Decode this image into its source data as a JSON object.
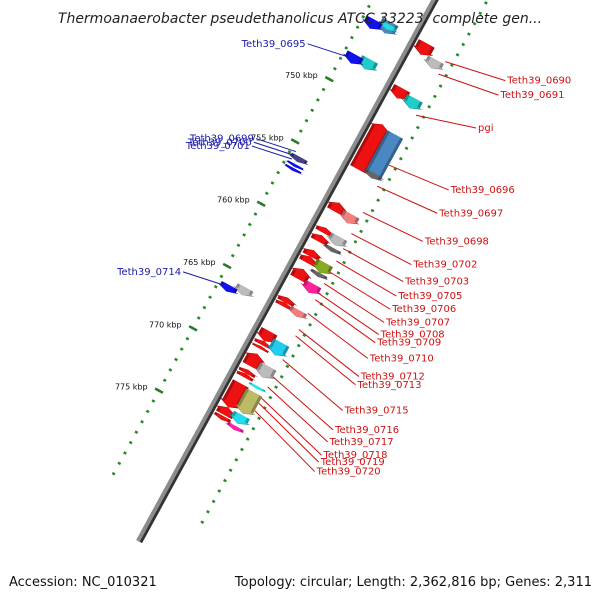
{
  "title": "Thermoanaerobacter pseudethanolicus ATCC 33223, complete gen...",
  "footer": {
    "accession": "Accession: NC_010321",
    "topology": "Topology: circular; Length: 2,362,816 bp; Genes: 2,311"
  },
  "colors": {
    "label_left": "#1a1aa8",
    "label_right": "#cc1111",
    "backbone": "#8c8c8c",
    "tick_major": "#2a7a2a",
    "tick_minor": "#2a8a2a"
  },
  "kbp_ticks": [
    {
      "label": "750 kbp",
      "pos": 750
    },
    {
      "label": "755 kbp",
      "pos": 755
    },
    {
      "label": "760 kbp",
      "pos": 760
    },
    {
      "label": "765 kbp",
      "pos": 765
    },
    {
      "label": "770 kbp",
      "pos": 770
    },
    {
      "label": "775 kbp",
      "pos": 775
    }
  ],
  "labels_left": [
    {
      "text": "Teth39_0695",
      "target": 748.0
    },
    {
      "text": "Teth39_0699",
      "target": 755.6
    },
    {
      "text": "Teth39_0700",
      "target": 755.9
    },
    {
      "text": "Teth39_0701",
      "target": 756.2
    },
    {
      "text": "Teth39_0714",
      "target": 766.3
    }
  ],
  "labels_right": [
    {
      "text": "Teth39_0690",
      "target": 745.0
    },
    {
      "text": "Teth39_0691",
      "target": 746.0
    },
    {
      "text": "pgi",
      "target": 749.3
    },
    {
      "text": "Teth39_0696",
      "target": 753.3
    },
    {
      "text": "Teth39_0697",
      "target": 755.0
    },
    {
      "text": "Teth39_0698",
      "target": 757.1
    },
    {
      "text": "Teth39_0702",
      "target": 758.8
    },
    {
      "text": "Teth39_0703",
      "target": 760.0
    },
    {
      "text": "Teth39_0705",
      "target": 761.0
    },
    {
      "text": "Teth39_0706",
      "target": 761.9
    },
    {
      "text": "Teth39_0707",
      "target": 762.8
    },
    {
      "text": "Teth39_0708",
      "target": 763.6
    },
    {
      "text": "Teth39_0709",
      "target": 764.1
    },
    {
      "text": "Teth39_0710",
      "target": 765.2
    },
    {
      "text": "Teth39_0712",
      "target": 766.5
    },
    {
      "text": "Teth39_0713",
      "target": 767.0
    },
    {
      "text": "Teth39_0715",
      "target": 768.9
    },
    {
      "text": "Teth39_0716",
      "target": 770.3
    },
    {
      "text": "Teth39_0717",
      "target": 771.1
    },
    {
      "text": "Teth39_0718",
      "target": 772.0
    },
    {
      "text": "Teth39_0719",
      "target": 772.4
    },
    {
      "text": "Teth39_0720",
      "target": 773.0
    }
  ],
  "genes": [
    {
      "ring": 1,
      "start": 744.4,
      "end": 745.3,
      "dir": 1,
      "color": "#4a88c2"
    },
    {
      "ring": 1,
      "start": 744.6,
      "end": 745.0,
      "dir": 1,
      "color": "#22dddd"
    },
    {
      "ring": 0,
      "start": 744.8,
      "end": 745.5,
      "dir": 1,
      "color": "#1111ee"
    },
    {
      "ring": 3,
      "start": 744.5,
      "end": 745.4,
      "dir": 1,
      "color": "#ee1111"
    },
    {
      "ring": 4,
      "start": 745.2,
      "end": 745.9,
      "dir": 1,
      "color": "#bbbbbb"
    },
    {
      "ring": 1,
      "start": 747.4,
      "end": 748.2,
      "dir": 1,
      "color": "#22cccc"
    },
    {
      "ring": 0,
      "start": 747.6,
      "end": 748.3,
      "dir": 1,
      "color": "#1111ee"
    },
    {
      "ring": 3,
      "start": 748.1,
      "end": 748.9,
      "dir": 1,
      "color": "#ee1111"
    },
    {
      "ring": 4,
      "start": 748.3,
      "end": 749.1,
      "dir": 1,
      "color": "#22cccc"
    },
    {
      "ring": 3,
      "start": 751.0,
      "end": 754.6,
      "dir": -1,
      "color": "#ee1111"
    },
    {
      "ring": 4,
      "start": 751.2,
      "end": 754.7,
      "dir": 1,
      "color": "#4a88c2"
    },
    {
      "ring": 4,
      "start": 754.3,
      "end": 754.7,
      "dir": 1,
      "color": "#666666"
    },
    {
      "ring": 0,
      "start": 755.8,
      "end": 756.2,
      "dir": 1,
      "color": "#444488"
    },
    {
      "ring": 0,
      "start": 756.4,
      "end": 756.6,
      "dir": 1,
      "color": "#1111ee"
    },
    {
      "ring": 0,
      "start": 756.7,
      "end": 756.9,
      "dir": 1,
      "color": "#1111ee"
    },
    {
      "ring": 3,
      "start": 757.3,
      "end": 758.0,
      "dir": -1,
      "color": "#ee1111"
    },
    {
      "ring": 4,
      "start": 757.6,
      "end": 758.3,
      "dir": 1,
      "color": "#f08080"
    },
    {
      "ring": 3,
      "start": 759.3,
      "end": 759.7,
      "dir": -1,
      "color": "#ee1111"
    },
    {
      "ring": 4,
      "start": 759.4,
      "end": 760.1,
      "dir": 1,
      "color": "#bbbbbb"
    },
    {
      "ring": 3,
      "start": 759.9,
      "end": 760.4,
      "dir": -1,
      "color": "#ee1111"
    },
    {
      "ring": 4,
      "start": 760.3,
      "end": 760.6,
      "dir": 1,
      "color": "#666666"
    },
    {
      "ring": 3,
      "start": 761.1,
      "end": 761.6,
      "dir": -1,
      "color": "#ee1111"
    },
    {
      "ring": 3,
      "start": 761.6,
      "end": 762.1,
      "dir": -1,
      "color": "#ee1111"
    },
    {
      "ring": 4,
      "start": 761.5,
      "end": 762.3,
      "dir": 1,
      "color": "#88aa22"
    },
    {
      "ring": 4,
      "start": 762.3,
      "end": 762.6,
      "dir": 1,
      "color": "#666666"
    },
    {
      "ring": 3,
      "start": 762.6,
      "end": 763.4,
      "dir": -1,
      "color": "#ee1111"
    },
    {
      "ring": 4,
      "start": 763.2,
      "end": 763.9,
      "dir": 1,
      "color": "#ff2299"
    },
    {
      "ring": 3,
      "start": 764.9,
      "end": 765.3,
      "dir": -1,
      "color": "#ee1111"
    },
    {
      "ring": 3,
      "start": 765.3,
      "end": 765.6,
      "dir": -1,
      "color": "#ee1111"
    },
    {
      "ring": 4,
      "start": 765.3,
      "end": 765.8,
      "dir": 1,
      "color": "#f08080"
    },
    {
      "ring": 1,
      "start": 765.7,
      "end": 766.3,
      "dir": 1,
      "color": "#bbbbbb"
    },
    {
      "ring": 0,
      "start": 766.1,
      "end": 766.6,
      "dir": 1,
      "color": "#1111ee"
    },
    {
      "ring": 3,
      "start": 767.6,
      "end": 768.4,
      "dir": 1,
      "color": "#ee1111"
    },
    {
      "ring": 3,
      "start": 768.4,
      "end": 768.7,
      "dir": -1,
      "color": "#ee1111"
    },
    {
      "ring": 3,
      "start": 768.8,
      "end": 769.0,
      "dir": -1,
      "color": "#ee1111"
    },
    {
      "ring": 4,
      "start": 767.9,
      "end": 768.9,
      "dir": 1,
      "color": "#22ccee"
    },
    {
      "ring": 3,
      "start": 769.4,
      "end": 770.4,
      "dir": -1,
      "color": "#ee1111"
    },
    {
      "ring": 4,
      "start": 769.8,
      "end": 770.7,
      "dir": 1,
      "color": "#bbbbbb"
    },
    {
      "ring": 3,
      "start": 770.7,
      "end": 771.0,
      "dir": -1,
      "color": "#ee1111"
    },
    {
      "ring": 3,
      "start": 771.0,
      "end": 771.3,
      "dir": -1,
      "color": "#ee1111"
    },
    {
      "ring": 4,
      "start": 771.4,
      "end": 771.6,
      "dir": 1,
      "color": "#22eeee"
    },
    {
      "ring": 3,
      "start": 771.8,
      "end": 773.7,
      "dir": 1,
      "color": "#ee1111"
    },
    {
      "ring": 4,
      "start": 771.9,
      "end": 773.6,
      "dir": 1,
      "color": "#bbbb66"
    },
    {
      "ring": 3,
      "start": 773.7,
      "end": 774.3,
      "dir": -1,
      "color": "#ee1111"
    },
    {
      "ring": 4,
      "start": 773.7,
      "end": 774.4,
      "dir": 1,
      "color": "#22ddee"
    },
    {
      "ring": 3,
      "start": 774.4,
      "end": 774.7,
      "dir": 1,
      "color": "#ee1111"
    },
    {
      "ring": 4,
      "start": 774.6,
      "end": 774.9,
      "dir": 1,
      "color": "#ff22aa"
    }
  ]
}
